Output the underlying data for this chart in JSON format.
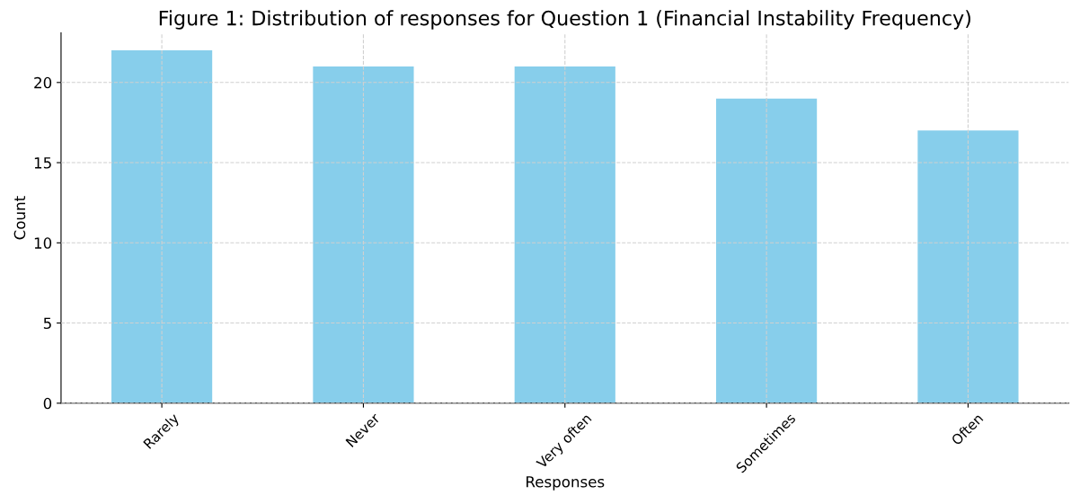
{
  "chart_data": {
    "type": "bar",
    "title": "Figure 1: Distribution of responses for Question 1 (Financial Instability Frequency)",
    "xlabel": "Responses",
    "ylabel": "Count",
    "categories": [
      "Rarely",
      "Never",
      "Very often",
      "Sometimes",
      "Often"
    ],
    "values": [
      22,
      21,
      21,
      19,
      17
    ],
    "color": "#87ceeb",
    "ylim": [
      0,
      23.1
    ],
    "yticks": [
      0,
      5,
      10,
      15,
      20
    ],
    "grid": true
  }
}
